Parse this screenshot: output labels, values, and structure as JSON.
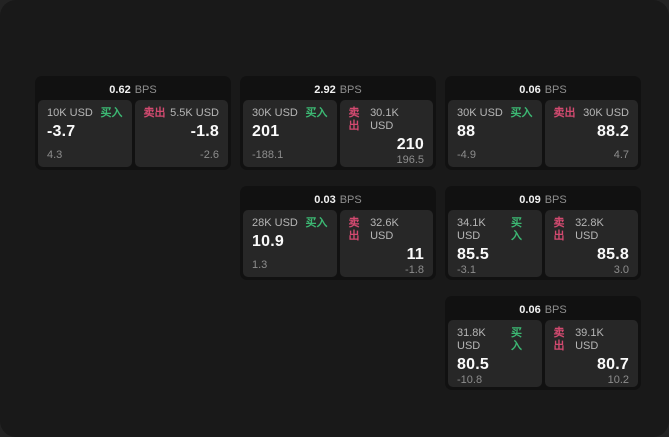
{
  "colors": {
    "buy_green": "#3cb873",
    "sell_red": "#d34a70",
    "backdrop": "#232323",
    "window_bg": "#191919",
    "card_bg": "#111111",
    "tile_bg": "#272727"
  },
  "cards": [
    {
      "grid": {
        "col": 1,
        "row": 1
      },
      "bps": "0.62",
      "unit": "BPS",
      "buy": {
        "size": "10K USD",
        "side": "买入",
        "price": "-3.7",
        "change": "4.3"
      },
      "sell": {
        "side": "卖出",
        "size": "5.5K USD",
        "price": "-1.8",
        "change": "-2.6"
      }
    },
    {
      "grid": {
        "col": 2,
        "row": 1
      },
      "bps": "2.92",
      "unit": "BPS",
      "buy": {
        "size": "30K USD",
        "side": "买入",
        "price": "201",
        "change": "-188.1"
      },
      "sell": {
        "side": "卖出",
        "size": "30.1K USD",
        "price": "210",
        "change": "196.5"
      }
    },
    {
      "grid": {
        "col": 3,
        "row": 1
      },
      "bps": "0.06",
      "unit": "BPS",
      "buy": {
        "size": "30K USD",
        "side": "买入",
        "price": "88",
        "change": "-4.9"
      },
      "sell": {
        "side": "卖出",
        "size": "30K USD",
        "price": "88.2",
        "change": "4.7"
      }
    },
    {
      "grid": {
        "col": 2,
        "row": 2
      },
      "bps": "0.03",
      "unit": "BPS",
      "buy": {
        "size": "28K USD",
        "side": "买入",
        "price": "10.9",
        "change": "1.3"
      },
      "sell": {
        "side": "卖出",
        "size": "32.6K USD",
        "price": "11",
        "change": "-1.8"
      }
    },
    {
      "grid": {
        "col": 3,
        "row": 2
      },
      "bps": "0.09",
      "unit": "BPS",
      "buy": {
        "size": "34.1K USD",
        "side": "买入",
        "price": "85.5",
        "change": "-3.1"
      },
      "sell": {
        "side": "卖出",
        "size": "32.8K USD",
        "price": "85.8",
        "change": "3.0"
      }
    },
    {
      "grid": {
        "col": 3,
        "row": 3
      },
      "bps": "0.06",
      "unit": "BPS",
      "buy": {
        "size": "31.8K USD",
        "side": "买入",
        "price": "80.5",
        "change": "-10.8"
      },
      "sell": {
        "side": "卖出",
        "size": "39.1K USD",
        "price": "80.7",
        "change": "10.2"
      }
    }
  ]
}
